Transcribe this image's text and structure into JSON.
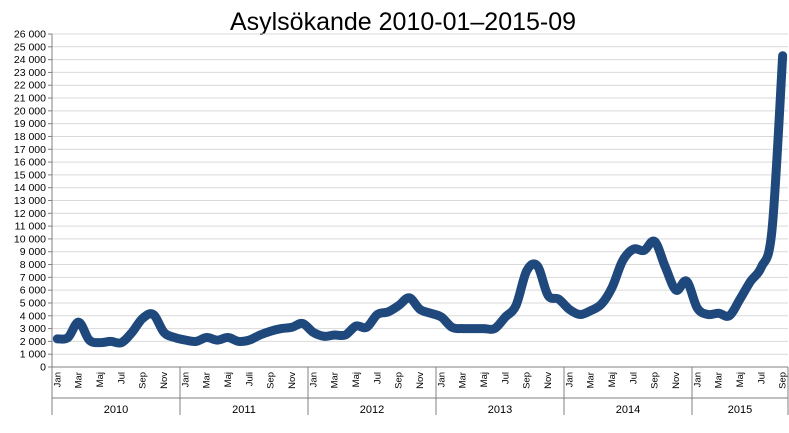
{
  "chart_data": {
    "type": "line",
    "title": "Asylsökande 2010-01–2015-09",
    "xlabel": "",
    "ylabel": "",
    "ylim": [
      0,
      26000
    ],
    "ytick_step": 1000,
    "ytick_labels": [
      "0",
      "1 000",
      "2 000",
      "3 000",
      "4 000",
      "5 000",
      "6 000",
      "7 000",
      "8 000",
      "9 000",
      "10 000",
      "11 000",
      "12 000",
      "13 000",
      "14 000",
      "15 000",
      "16 000",
      "17 000",
      "18 000",
      "19 000",
      "20 000",
      "21 000",
      "22 000",
      "23 000",
      "24 000",
      "25 000",
      "26 000"
    ],
    "grid": true,
    "legend": "none",
    "line_color": "#1F497D",
    "grid_color": "#D9D9D9",
    "month_labels": [
      "Jan",
      "",
      "Mar",
      "",
      "Maj",
      "",
      "Jul",
      "",
      "Sep",
      "",
      "Nov",
      ""
    ],
    "month_labels_2011": [
      "Jan",
      "",
      "Mar",
      "",
      "Maj",
      "",
      "Juli",
      "",
      "Sep",
      "",
      "Nov",
      ""
    ],
    "years": [
      "2010",
      "2011",
      "2012",
      "2013",
      "2014",
      "2015"
    ],
    "months_in_year": [
      12,
      12,
      12,
      12,
      12,
      9
    ],
    "month_labels_2015": [
      "Jan",
      "",
      "Mar",
      "",
      "Maj",
      "",
      "Jul",
      "",
      "Sep"
    ],
    "series": [
      {
        "values": [
          2200,
          2300,
          3500,
          2100,
          1900,
          2000,
          1900,
          2700,
          3800,
          4100,
          2700,
          2300,
          2100,
          2000,
          2300,
          2100,
          2300,
          2000,
          2100,
          2500,
          2800,
          3000,
          3100,
          3400,
          2700,
          2400,
          2500,
          2500,
          3200,
          3100,
          4100,
          4300,
          4800,
          5400,
          4500,
          4200,
          3900,
          3100,
          3000,
          3000,
          3000,
          3000,
          3900,
          4800,
          7500,
          7900,
          5600,
          5300,
          4500,
          4100,
          4400,
          4900,
          6200,
          8300,
          9200,
          9100,
          9800,
          7800,
          6000,
          6700,
          4600,
          4100,
          4200,
          4000,
          5300,
          6700,
          7800,
          10700,
          24300
        ]
      }
    ]
  }
}
